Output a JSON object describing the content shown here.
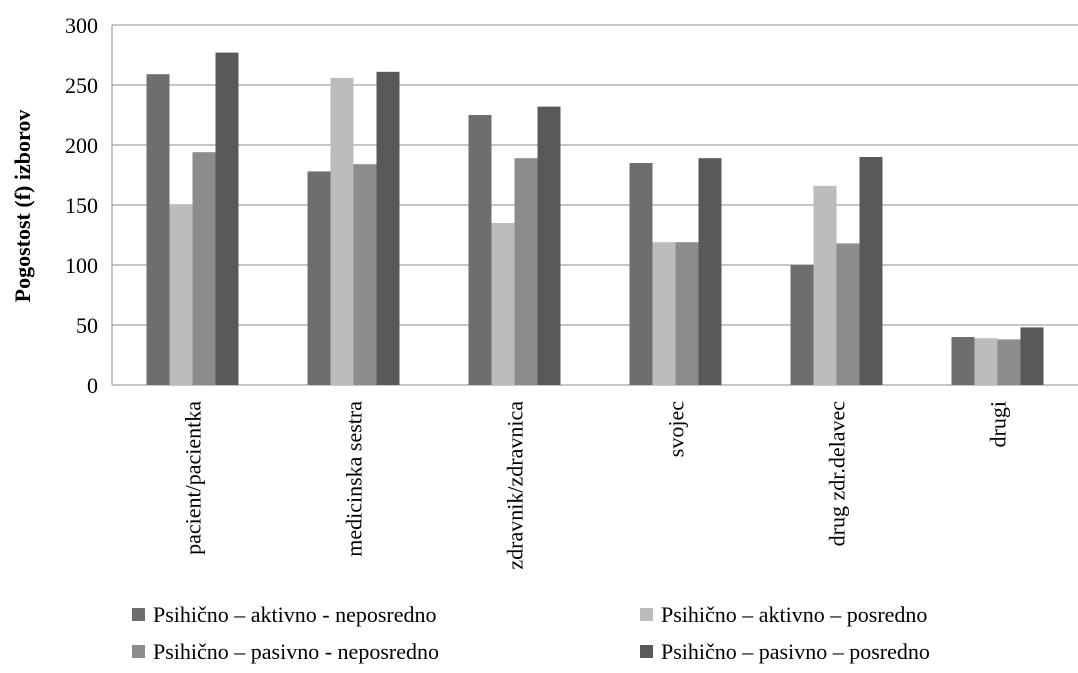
{
  "chart_data": {
    "type": "bar",
    "title": "",
    "xlabel": "",
    "ylabel": "Pogostost (f) izborov",
    "ylim": [
      0,
      300
    ],
    "yticks": [
      0,
      50,
      100,
      150,
      200,
      250,
      300
    ],
    "grid": true,
    "legend_position": "bottom",
    "categories": [
      "pacient/pacientka",
      "medicinska sestra",
      "zdravnik/zdravnica",
      "svojec",
      "drug zdr.delavec",
      "drugi"
    ],
    "series": [
      {
        "name": "Psihično – aktivno - neposredno",
        "color": "#6e6e6e",
        "values": [
          259,
          178,
          225,
          185,
          100,
          40
        ]
      },
      {
        "name": "Psihično – aktivno – posredno",
        "color": "#bcbcbc",
        "values": [
          150,
          256,
          135,
          119,
          166,
          39
        ]
      },
      {
        "name": "Psihično – pasivno - neposredno",
        "color": "#8c8c8c",
        "values": [
          194,
          184,
          189,
          119,
          118,
          38
        ]
      },
      {
        "name": "Psihično – pasivno – posredno",
        "color": "#595959",
        "values": [
          277,
          261,
          232,
          189,
          190,
          48
        ]
      }
    ]
  }
}
